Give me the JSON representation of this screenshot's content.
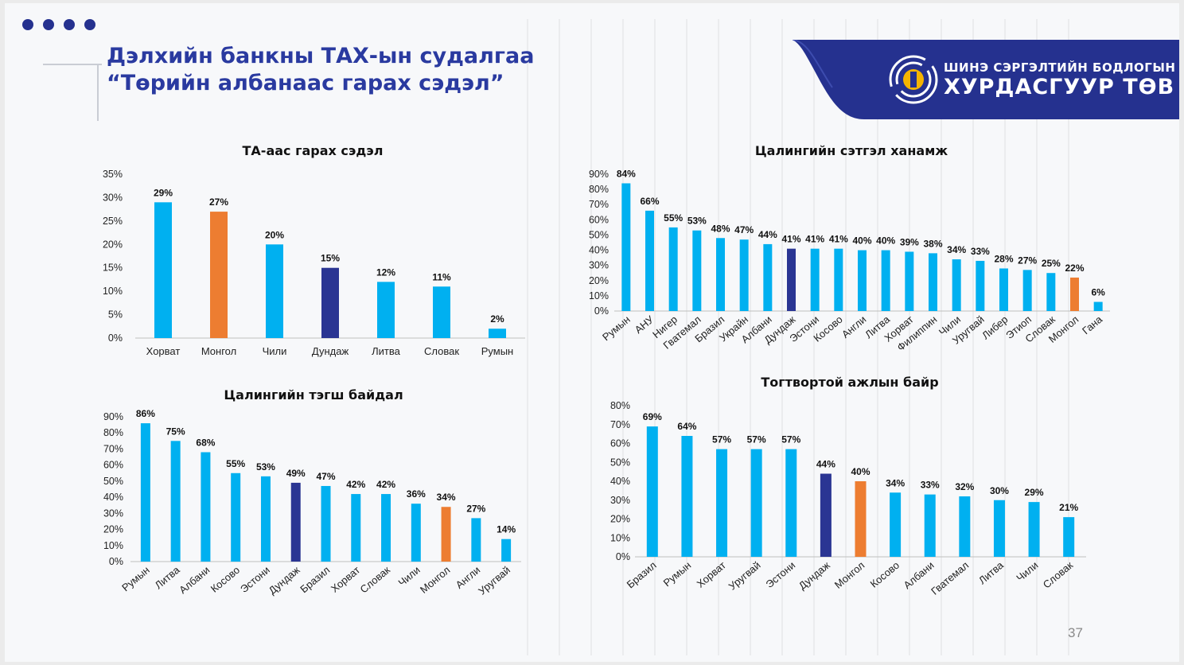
{
  "slide": {
    "title_line1": "Дэлхийн банкны ТАХ-ын судалгаа",
    "title_line2": "“Төрийн албанаас гарах сэдэл”",
    "logo_line1": "ШИНЭ СЭРГЭЛТИЙН БОДЛОГЫН",
    "logo_line2": "ХУРДАСГУУР ТӨВ",
    "page_number": "37",
    "colors": {
      "blue": "#00b0f0",
      "orange": "#ed7d31",
      "navy": "#2a3593",
      "brand": "#25318f"
    }
  },
  "chart_data": [
    {
      "type": "bar",
      "title": "ТА-аас гарах сэдэл",
      "categories": [
        "Хорват",
        "Монгол",
        "Чили",
        "Дундаж",
        "Литва",
        "Словак",
        "Румын"
      ],
      "values": [
        29,
        27,
        20,
        15,
        12,
        11,
        2
      ],
      "bar_colors": [
        "blue",
        "orange",
        "blue",
        "navy",
        "blue",
        "blue",
        "blue"
      ],
      "ylim": [
        0,
        35
      ],
      "yticks": [
        "0%",
        "5%",
        "10%",
        "15%",
        "20%",
        "25%",
        "30%",
        "35%"
      ],
      "labels_rotated": false,
      "grid": false
    },
    {
      "type": "bar",
      "title": "Цалингийн сэтгэл ханамж",
      "categories": [
        "Румын",
        "АНУ",
        "Нигер",
        "Гватемал",
        "Бразил",
        "Украйн",
        "Албани",
        "Дундаж",
        "Эстони",
        "Косово",
        "Англи",
        "Литва",
        "Хорват",
        "Филиппин",
        "Чили",
        "Уругвай",
        "Либер",
        "Этиоп",
        "Словак",
        "Монгол",
        "Гана"
      ],
      "values": [
        84,
        66,
        55,
        53,
        48,
        47,
        44,
        41,
        41,
        41,
        40,
        40,
        39,
        38,
        34,
        33,
        28,
        27,
        25,
        22,
        6
      ],
      "bar_colors": [
        "blue",
        "blue",
        "blue",
        "blue",
        "blue",
        "blue",
        "blue",
        "navy",
        "blue",
        "blue",
        "blue",
        "blue",
        "blue",
        "blue",
        "blue",
        "blue",
        "blue",
        "blue",
        "blue",
        "orange",
        "blue"
      ],
      "ylim": [
        0,
        90
      ],
      "yticks": [
        "0%",
        "10%",
        "20%",
        "30%",
        "40%",
        "50%",
        "60%",
        "70%",
        "80%",
        "90%"
      ],
      "labels_rotated": true,
      "grid": false
    },
    {
      "type": "bar",
      "title": "Цалингийн тэгш байдал",
      "categories": [
        "Румын",
        "Литва",
        "Албани",
        "Косово",
        "Эстони",
        "Дундаж",
        "Бразил",
        "Хорват",
        "Словак",
        "Чили",
        "Монгол",
        "Англи",
        "Уругвай"
      ],
      "values": [
        86,
        75,
        68,
        55,
        53,
        49,
        47,
        42,
        42,
        36,
        34,
        27,
        14
      ],
      "bar_colors": [
        "blue",
        "blue",
        "blue",
        "blue",
        "blue",
        "navy",
        "blue",
        "blue",
        "blue",
        "blue",
        "orange",
        "blue",
        "blue"
      ],
      "ylim": [
        0,
        90
      ],
      "yticks": [
        "0%",
        "10%",
        "20%",
        "30%",
        "40%",
        "50%",
        "60%",
        "70%",
        "80%",
        "90%"
      ],
      "labels_rotated": true,
      "grid": false
    },
    {
      "type": "bar",
      "title": "Тогтвортой ажлын байр",
      "categories": [
        "Бразил",
        "Румын",
        "Хорват",
        "Уругвай",
        "Эстони",
        "Дундаж",
        "Монгол",
        "Косово",
        "Албани",
        "Гватемал",
        "Литва",
        "Чили",
        "Словак"
      ],
      "values": [
        69,
        64,
        57,
        57,
        57,
        44,
        40,
        34,
        33,
        32,
        30,
        29,
        21
      ],
      "bar_colors": [
        "blue",
        "blue",
        "blue",
        "blue",
        "blue",
        "navy",
        "orange",
        "blue",
        "blue",
        "blue",
        "blue",
        "blue",
        "blue"
      ],
      "ylim": [
        0,
        80
      ],
      "yticks": [
        "0%",
        "10%",
        "20%",
        "30%",
        "40%",
        "50%",
        "60%",
        "70%",
        "80%"
      ],
      "labels_rotated": true,
      "grid": false
    }
  ]
}
